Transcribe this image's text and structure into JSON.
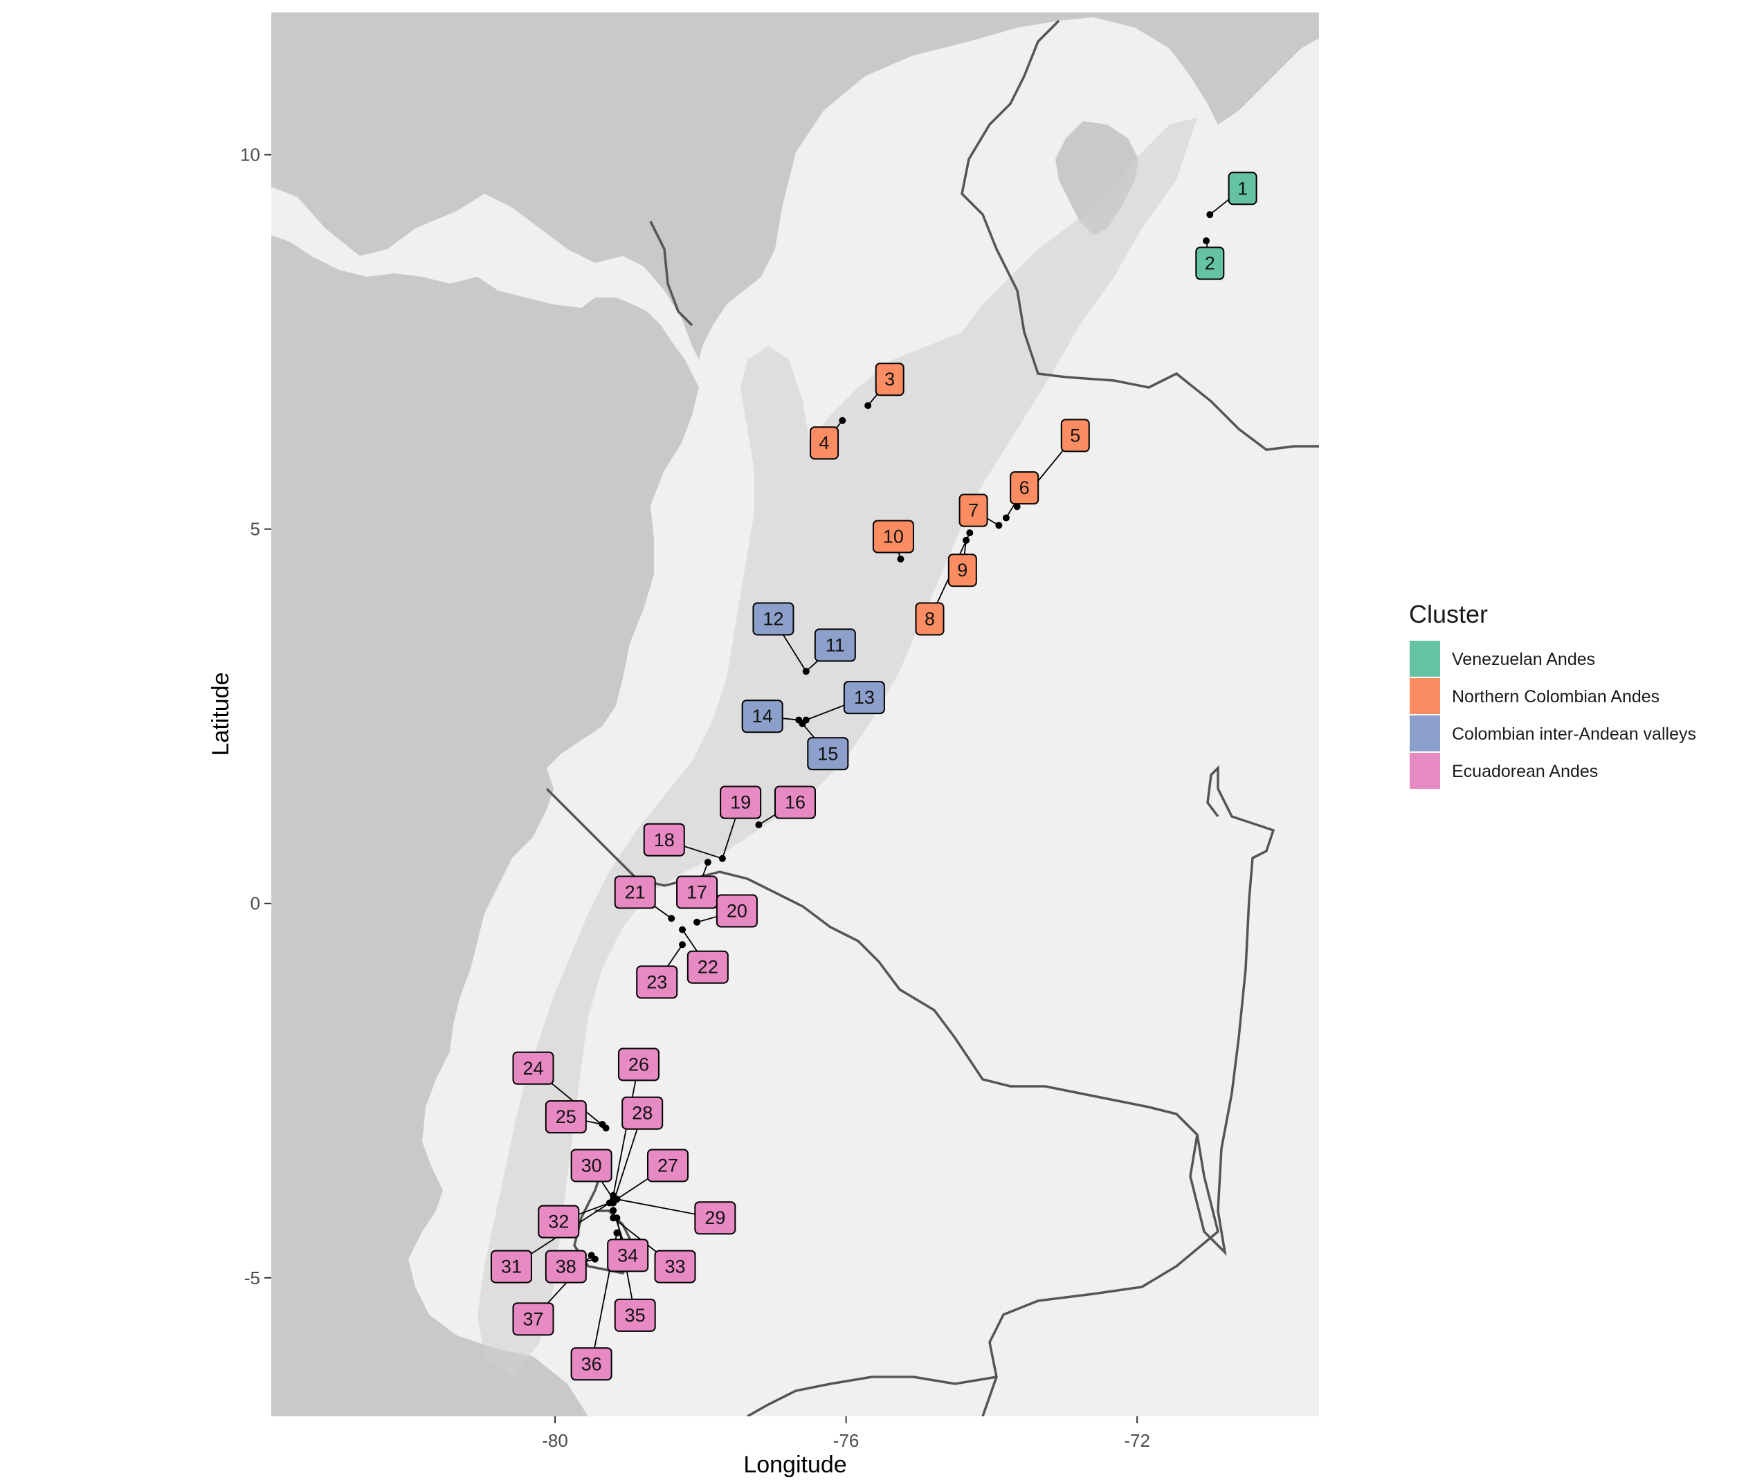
{
  "axes": {
    "x_title": "Longitude",
    "y_title": "Latitude",
    "x_ticks": [
      -80,
      -76,
      -72
    ],
    "y_ticks": [
      10,
      5,
      0,
      -5
    ],
    "x_range": [
      -83.9,
      -69.5
    ],
    "y_range": [
      -6.85,
      11.9
    ]
  },
  "legend": {
    "title": "Cluster",
    "entries": [
      {
        "label": "Venezuelan Andes",
        "color": "#66c2a5"
      },
      {
        "label": "Northern Colombian Andes",
        "color": "#fc8d62"
      },
      {
        "label": "Colombian inter-Andean valleys",
        "color": "#8da0cb"
      },
      {
        "label": "Ecuadorean Andes",
        "color": "#e78ac3"
      }
    ]
  },
  "colors": {
    "sea": "#c9c9c9",
    "land": "#f0f0f0",
    "relief": "#cfcfcf",
    "border": "#555555"
  },
  "sites": [
    {
      "id": "1",
      "cluster": 0,
      "lon": -71.0,
      "lat": 9.2,
      "label_lon": -70.55,
      "label_lat": 9.55
    },
    {
      "id": "2",
      "cluster": 0,
      "lon": -71.05,
      "lat": 8.85,
      "label_lon": -71.0,
      "label_lat": 8.55
    },
    {
      "id": "3",
      "cluster": 1,
      "lon": -75.7,
      "lat": 6.65,
      "label_lon": -75.4,
      "label_lat": 7.0
    },
    {
      "id": "4",
      "cluster": 1,
      "lon": -76.05,
      "lat": 6.45,
      "label_lon": -76.3,
      "label_lat": 6.15
    },
    {
      "id": "5",
      "cluster": 1,
      "lon": -73.65,
      "lat": 5.3,
      "label_lon": -72.85,
      "label_lat": 6.25
    },
    {
      "id": "6",
      "cluster": 1,
      "lon": -73.8,
      "lat": 5.15,
      "label_lon": -73.55,
      "label_lat": 5.55
    },
    {
      "id": "7",
      "cluster": 1,
      "lon": -73.9,
      "lat": 5.05,
      "label_lon": -74.25,
      "label_lat": 5.25
    },
    {
      "id": "8",
      "cluster": 1,
      "lon": -74.3,
      "lat": 4.95,
      "label_lon": -74.85,
      "label_lat": 3.8
    },
    {
      "id": "9",
      "cluster": 1,
      "lon": -74.35,
      "lat": 4.85,
      "label_lon": -74.4,
      "label_lat": 4.45
    },
    {
      "id": "10",
      "cluster": 1,
      "lon": -75.25,
      "lat": 4.6,
      "label_lon": -75.35,
      "label_lat": 4.9
    },
    {
      "id": "11",
      "cluster": 2,
      "lon": -76.55,
      "lat": 3.1,
      "label_lon": -76.15,
      "label_lat": 3.45
    },
    {
      "id": "12",
      "cluster": 2,
      "lon": -76.55,
      "lat": 3.1,
      "label_lon": -77.0,
      "label_lat": 3.8
    },
    {
      "id": "13",
      "cluster": 2,
      "lon": -76.55,
      "lat": 2.45,
      "label_lon": -75.75,
      "label_lat": 2.75
    },
    {
      "id": "14",
      "cluster": 2,
      "lon": -76.65,
      "lat": 2.45,
      "label_lon": -77.15,
      "label_lat": 2.5
    },
    {
      "id": "15",
      "cluster": 2,
      "lon": -76.6,
      "lat": 2.4,
      "label_lon": -76.25,
      "label_lat": 2.0
    },
    {
      "id": "16",
      "cluster": 3,
      "lon": -77.2,
      "lat": 1.05,
      "label_lon": -76.7,
      "label_lat": 1.35
    },
    {
      "id": "17",
      "cluster": 3,
      "lon": -77.9,
      "lat": 0.55,
      "label_lon": -78.05,
      "label_lat": 0.15
    },
    {
      "id": "18",
      "cluster": 3,
      "lon": -77.7,
      "lat": 0.6,
      "label_lon": -78.5,
      "label_lat": 0.85
    },
    {
      "id": "19",
      "cluster": 3,
      "lon": -77.7,
      "lat": 0.6,
      "label_lon": -77.45,
      "label_lat": 1.35
    },
    {
      "id": "20",
      "cluster": 3,
      "lon": -78.05,
      "lat": -0.25,
      "label_lon": -77.5,
      "label_lat": -0.1
    },
    {
      "id": "21",
      "cluster": 3,
      "lon": -78.4,
      "lat": -0.2,
      "label_lon": -78.9,
      "label_lat": 0.15
    },
    {
      "id": "22",
      "cluster": 3,
      "lon": -78.25,
      "lat": -0.35,
      "label_lon": -77.9,
      "label_lat": -0.85
    },
    {
      "id": "23",
      "cluster": 3,
      "lon": -78.25,
      "lat": -0.55,
      "label_lon": -78.6,
      "label_lat": -1.05
    },
    {
      "id": "24",
      "cluster": 3,
      "lon": -79.3,
      "lat": -3.0,
      "label_lon": -80.3,
      "label_lat": -2.2
    },
    {
      "id": "25",
      "cluster": 3,
      "lon": -79.35,
      "lat": -2.95,
      "label_lon": -79.85,
      "label_lat": -2.85
    },
    {
      "id": "26",
      "cluster": 3,
      "lon": -79.2,
      "lat": -3.9,
      "label_lon": -78.85,
      "label_lat": -2.15
    },
    {
      "id": "27",
      "cluster": 3,
      "lon": -79.15,
      "lat": -3.95,
      "label_lon": -78.45,
      "label_lat": -3.5
    },
    {
      "id": "28",
      "cluster": 3,
      "lon": -79.2,
      "lat": -4.0,
      "label_lon": -78.8,
      "label_lat": -2.8
    },
    {
      "id": "29",
      "cluster": 3,
      "lon": -79.15,
      "lat": -3.95,
      "label_lon": -77.8,
      "label_lat": -4.2
    },
    {
      "id": "30",
      "cluster": 3,
      "lon": -79.2,
      "lat": -3.95,
      "label_lon": -79.5,
      "label_lat": -3.5
    },
    {
      "id": "31",
      "cluster": 3,
      "lon": -79.25,
      "lat": -4.0,
      "label_lon": -80.6,
      "label_lat": -4.85
    },
    {
      "id": "32",
      "cluster": 3,
      "lon": -79.25,
      "lat": -4.0,
      "label_lon": -79.95,
      "label_lat": -4.25
    },
    {
      "id": "33",
      "cluster": 3,
      "lon": -79.2,
      "lat": -4.2,
      "label_lon": -78.35,
      "label_lat": -4.85
    },
    {
      "id": "34",
      "cluster": 3,
      "lon": -79.2,
      "lat": -4.1,
      "label_lon": -79.0,
      "label_lat": -4.7
    },
    {
      "id": "35",
      "cluster": 3,
      "lon": -79.15,
      "lat": -4.2,
      "label_lon": -78.9,
      "label_lat": -5.5
    },
    {
      "id": "36",
      "cluster": 3,
      "lon": -79.15,
      "lat": -4.4,
      "label_lon": -79.5,
      "label_lat": -6.15
    },
    {
      "id": "37",
      "cluster": 3,
      "lon": -79.5,
      "lat": -4.7,
      "label_lon": -80.3,
      "label_lat": -5.55
    },
    {
      "id": "38",
      "cluster": 3,
      "lon": -79.45,
      "lat": -4.75,
      "label_lon": -79.85,
      "label_lat": -4.85
    }
  ]
}
